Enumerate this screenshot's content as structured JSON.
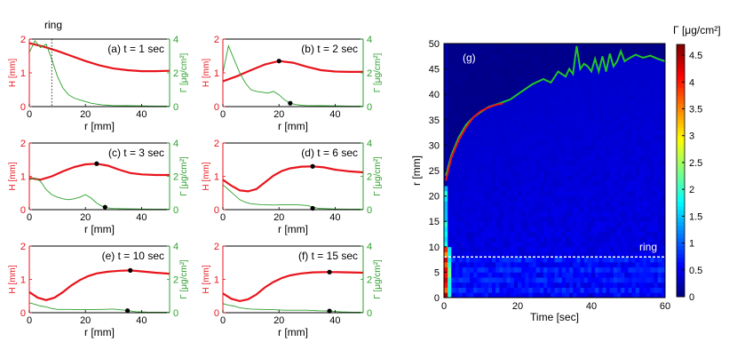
{
  "colors": {
    "H": "#e8141c",
    "Gamma": "#2ca02c",
    "axis": "#000000"
  },
  "chart_data": [
    {
      "type": "line",
      "panel": "a",
      "caption": "(a) t = 1 sec",
      "annotation": "ring",
      "ring_r": 8,
      "xlabel": "r [mm]",
      "ylabel_left": "H [mm]",
      "ylabel_right": "Γ [μg/cm²]",
      "xlim": [
        0,
        50
      ],
      "ylim_left": [
        0,
        2
      ],
      "ylim_right": [
        0,
        4
      ],
      "xticks": [
        0,
        20,
        40
      ],
      "yticks_left": [
        0,
        1,
        2
      ],
      "yticks_right": [
        0,
        2,
        4
      ],
      "series": [
        {
          "axis": "left",
          "x": [
            0,
            5,
            10,
            15,
            20,
            25,
            30,
            35,
            40,
            45,
            50
          ],
          "y": [
            1.88,
            1.78,
            1.65,
            1.5,
            1.35,
            1.22,
            1.13,
            1.08,
            1.05,
            1.05,
            1.06
          ]
        },
        {
          "axis": "right",
          "x": [
            0,
            2,
            4,
            6,
            8,
            10,
            12,
            14,
            16,
            18,
            20,
            22,
            24,
            26,
            28,
            30,
            35,
            40,
            45,
            50
          ],
          "y": [
            3.2,
            3.9,
            3.5,
            3.7,
            2.8,
            1.8,
            1.1,
            0.7,
            0.5,
            0.4,
            0.3,
            0.2,
            0.15,
            0.1,
            0.08,
            0.06,
            0.05,
            0.04,
            0.03,
            0.03
          ]
        }
      ]
    },
    {
      "type": "line",
      "panel": "b",
      "caption": "(b) t = 2 sec",
      "xlabel": "r [mm]",
      "ylabel_left": "H [mm]",
      "ylabel_right": "Γ [μg/cm²]",
      "xlim": [
        0,
        50
      ],
      "ylim_left": [
        0,
        2
      ],
      "ylim_right": [
        0,
        4
      ],
      "xticks": [
        0,
        20,
        40
      ],
      "yticks_left": [
        0,
        1,
        2
      ],
      "yticks_right": [
        0,
        2,
        4
      ],
      "markers": [
        {
          "axis": "left",
          "x": 20,
          "y": 1.35
        },
        {
          "axis": "right",
          "x": 24,
          "y": 0.2
        }
      ],
      "series": [
        {
          "axis": "left",
          "x": [
            0,
            5,
            10,
            15,
            20,
            25,
            30,
            35,
            40,
            45,
            50
          ],
          "y": [
            0.75,
            0.9,
            1.08,
            1.25,
            1.35,
            1.3,
            1.18,
            1.08,
            1.04,
            1.03,
            1.03
          ]
        },
        {
          "axis": "right",
          "x": [
            0,
            2,
            4,
            6,
            8,
            10,
            12,
            14,
            16,
            18,
            20,
            22,
            24,
            26,
            28,
            30,
            35,
            40,
            45,
            50
          ],
          "y": [
            2.0,
            3.6,
            2.8,
            2.0,
            1.4,
            1.0,
            0.9,
            0.85,
            0.8,
            0.9,
            0.7,
            0.4,
            0.2,
            0.12,
            0.08,
            0.06,
            0.05,
            0.04,
            0.03,
            0.03
          ]
        }
      ]
    },
    {
      "type": "line",
      "panel": "c",
      "caption": "(c) t = 3 sec",
      "xlabel": "r [mm]",
      "ylabel_left": "H [mm]",
      "ylabel_right": "Γ [μg/cm²]",
      "xlim": [
        0,
        50
      ],
      "ylim_left": [
        0,
        2
      ],
      "ylim_right": [
        0,
        4
      ],
      "xticks": [
        0,
        20,
        40
      ],
      "yticks_left": [
        0,
        1,
        2
      ],
      "yticks_right": [
        0,
        2,
        4
      ],
      "markers": [
        {
          "axis": "left",
          "x": 24,
          "y": 1.38
        },
        {
          "axis": "right",
          "x": 27,
          "y": 0.15
        }
      ],
      "series": [
        {
          "axis": "left",
          "x": [
            0,
            4,
            8,
            12,
            16,
            20,
            24,
            28,
            32,
            36,
            40,
            45,
            50
          ],
          "y": [
            0.95,
            0.9,
            1.0,
            1.15,
            1.28,
            1.36,
            1.38,
            1.32,
            1.2,
            1.1,
            1.06,
            1.04,
            1.04
          ]
        },
        {
          "axis": "right",
          "x": [
            0,
            2,
            4,
            6,
            8,
            10,
            12,
            14,
            16,
            18,
            20,
            22,
            24,
            26,
            28,
            30,
            35,
            40,
            45,
            50
          ],
          "y": [
            1.8,
            1.9,
            1.7,
            1.2,
            0.9,
            0.75,
            0.65,
            0.6,
            0.65,
            0.75,
            0.9,
            0.7,
            0.4,
            0.2,
            0.1,
            0.07,
            0.05,
            0.04,
            0.03,
            0.03
          ]
        }
      ]
    },
    {
      "type": "line",
      "panel": "d",
      "caption": "(d) t = 6 sec",
      "xlabel": "r [mm]",
      "ylabel_left": "H [mm]",
      "ylabel_right": "Γ [μg/cm²]",
      "xlim": [
        0,
        50
      ],
      "ylim_left": [
        0,
        2
      ],
      "ylim_right": [
        0,
        4
      ],
      "xticks": [
        0,
        20,
        40
      ],
      "yticks_left": [
        0,
        1,
        2
      ],
      "yticks_right": [
        0,
        2,
        4
      ],
      "markers": [
        {
          "axis": "left",
          "x": 32,
          "y": 1.3
        },
        {
          "axis": "right",
          "x": 32,
          "y": 0.08
        }
      ],
      "series": [
        {
          "axis": "left",
          "x": [
            0,
            3,
            6,
            9,
            12,
            15,
            18,
            21,
            24,
            28,
            32,
            36,
            40,
            45,
            50
          ],
          "y": [
            0.9,
            0.72,
            0.58,
            0.55,
            0.62,
            0.82,
            1.02,
            1.16,
            1.24,
            1.29,
            1.3,
            1.27,
            1.2,
            1.15,
            1.12
          ]
        },
        {
          "axis": "right",
          "x": [
            0,
            2,
            4,
            6,
            8,
            10,
            14,
            18,
            22,
            26,
            30,
            34,
            40,
            45,
            50
          ],
          "y": [
            1.5,
            1.2,
            0.9,
            0.6,
            0.45,
            0.35,
            0.3,
            0.28,
            0.3,
            0.3,
            0.25,
            0.08,
            0.04,
            0.03,
            0.03
          ]
        }
      ]
    },
    {
      "type": "line",
      "panel": "e",
      "caption": "(e) t = 10 sec",
      "xlabel": "r [mm]",
      "ylabel_left": "H [mm]",
      "ylabel_right": "Γ [μg/cm²]",
      "xlim": [
        0,
        50
      ],
      "ylim_left": [
        0,
        2
      ],
      "ylim_right": [
        0,
        4
      ],
      "xticks": [
        0,
        20,
        40
      ],
      "yticks_left": [
        0,
        1,
        2
      ],
      "yticks_right": [
        0,
        2,
        4
      ],
      "markers": [
        {
          "axis": "left",
          "x": 36,
          "y": 1.27
        },
        {
          "axis": "right",
          "x": 35,
          "y": 0.12
        }
      ],
      "series": [
        {
          "axis": "left",
          "x": [
            0,
            3,
            6,
            9,
            12,
            15,
            18,
            21,
            24,
            28,
            32,
            36,
            40,
            45,
            50
          ],
          "y": [
            0.62,
            0.45,
            0.38,
            0.45,
            0.62,
            0.82,
            0.98,
            1.1,
            1.18,
            1.23,
            1.26,
            1.27,
            1.24,
            1.2,
            1.17
          ]
        },
        {
          "axis": "right",
          "x": [
            0,
            2,
            4,
            6,
            8,
            10,
            14,
            18,
            22,
            26,
            30,
            34,
            38,
            42,
            46,
            50
          ],
          "y": [
            0.6,
            0.5,
            0.4,
            0.35,
            0.25,
            0.2,
            0.2,
            0.18,
            0.18,
            0.2,
            0.22,
            0.15,
            0.06,
            0.04,
            0.03,
            0.03
          ]
        }
      ]
    },
    {
      "type": "line",
      "panel": "f",
      "caption": "(f) t = 15 sec",
      "xlabel": "r [mm]",
      "ylabel_left": "H [mm]",
      "ylabel_right": "Γ [μg/cm²]",
      "xlim": [
        0,
        50
      ],
      "ylim_left": [
        0,
        2
      ],
      "ylim_right": [
        0,
        4
      ],
      "xticks": [
        0,
        20,
        40
      ],
      "yticks_left": [
        0,
        1,
        2
      ],
      "yticks_right": [
        0,
        2,
        4
      ],
      "markers": [
        {
          "axis": "left",
          "x": 38,
          "y": 1.22
        },
        {
          "axis": "right",
          "x": 38,
          "y": 0.1
        }
      ],
      "series": [
        {
          "axis": "left",
          "x": [
            0,
            3,
            6,
            9,
            12,
            15,
            18,
            21,
            24,
            28,
            32,
            36,
            40,
            45,
            50
          ],
          "y": [
            0.58,
            0.42,
            0.35,
            0.4,
            0.55,
            0.76,
            0.92,
            1.04,
            1.12,
            1.18,
            1.21,
            1.22,
            1.22,
            1.21,
            1.2
          ]
        },
        {
          "axis": "right",
          "x": [
            0,
            2,
            4,
            6,
            8,
            10,
            14,
            18,
            22,
            26,
            30,
            34,
            38,
            42,
            46,
            50
          ],
          "y": [
            0.55,
            0.45,
            0.4,
            0.3,
            0.25,
            0.22,
            0.2,
            0.18,
            0.15,
            0.15,
            0.15,
            0.12,
            0.1,
            0.05,
            0.03,
            0.03
          ]
        }
      ]
    },
    {
      "type": "heatmap",
      "panel": "g",
      "caption": "(g)",
      "xlabel": "Time [sec]",
      "ylabel": "r [mm]",
      "colorbar_label": "Γ [μg/cm²]",
      "xlim": [
        0,
        60
      ],
      "ylim": [
        0,
        50
      ],
      "clim": [
        0,
        4.7
      ],
      "xticks": [
        0,
        20,
        40,
        60
      ],
      "yticks": [
        0,
        5,
        10,
        15,
        20,
        25,
        30,
        35,
        40,
        45,
        50
      ],
      "cbar_ticks": [
        0,
        0.5,
        1,
        1.5,
        2,
        2.5,
        3,
        3.5,
        4,
        4.5
      ],
      "annotation": "ring",
      "ring_r": 8,
      "front_green": {
        "x": [
          0.5,
          2,
          4,
          6,
          8,
          10,
          12,
          15,
          18,
          21,
          24,
          27,
          29,
          31,
          33,
          34,
          35,
          36,
          37,
          38,
          39,
          40,
          41,
          42,
          43,
          44,
          45,
          46,
          47,
          48,
          49,
          50,
          52,
          54,
          56,
          58,
          60
        ],
        "y": [
          24,
          28,
          31.5,
          34,
          35.5,
          36.5,
          37.5,
          38.2,
          39,
          40.5,
          42,
          43,
          42.3,
          44.5,
          43.5,
          45,
          44,
          49.5,
          45,
          46,
          45.5,
          44.5,
          47,
          44.5,
          47.5,
          44.5,
          48,
          45.5,
          46.5,
          48.5,
          46.5,
          47,
          47.8,
          47.2,
          47.6,
          47,
          46.5
        ]
      },
      "front_red": {
        "x": [
          0.5,
          2,
          4,
          6,
          8,
          10,
          12,
          14,
          16
        ],
        "y": [
          23,
          27.5,
          31,
          33.5,
          35.5,
          36.7,
          37.4,
          37.9,
          38.2
        ]
      }
    }
  ]
}
